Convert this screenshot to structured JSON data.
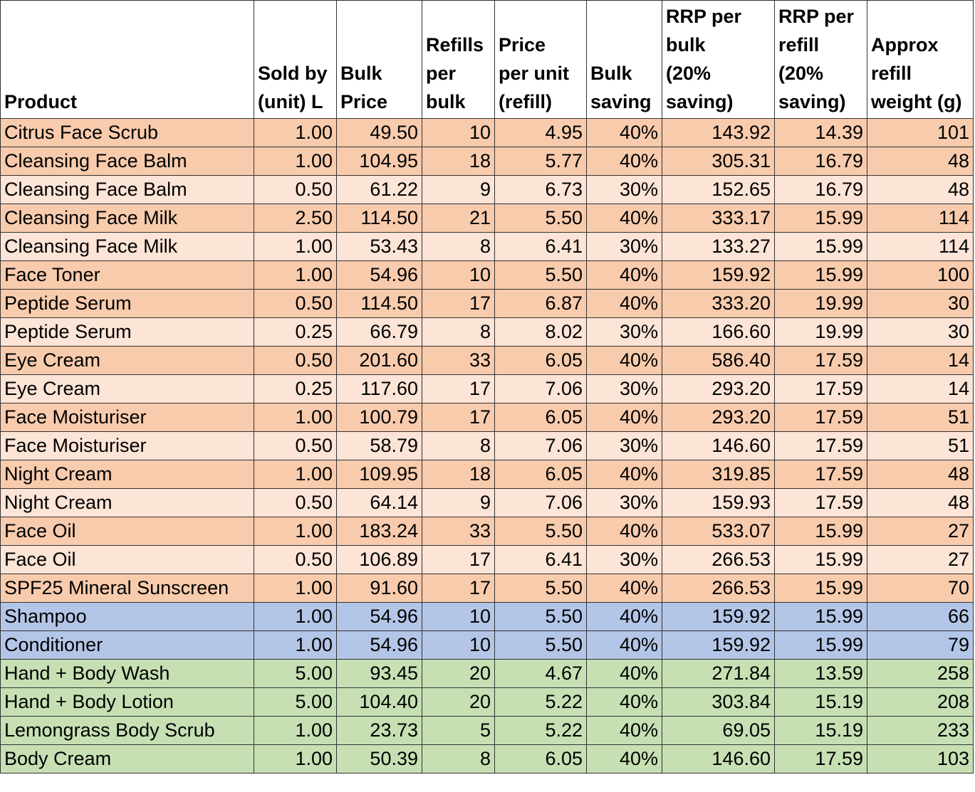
{
  "table": {
    "header": [
      [
        "Product"
      ],
      [
        "Sold by",
        "(unit) L"
      ],
      [
        "Bulk",
        "Price"
      ],
      [
        "Refills",
        "per",
        "bulk"
      ],
      [
        "Price",
        "per unit",
        "(refill)"
      ],
      [
        "Bulk",
        "saving"
      ],
      [
        "RRP per",
        "bulk",
        "(20%",
        "saving)"
      ],
      [
        "RRP per",
        "refill",
        "(20%",
        "saving)"
      ],
      [
        "Approx",
        "refill",
        "weight (g)"
      ]
    ],
    "rows": [
      [
        "Citrus Face Scrub",
        "1.00",
        "49.50",
        "10",
        "4.95",
        "40%",
        "143.92",
        "14.39",
        "101"
      ],
      [
        "Cleansing Face Balm",
        "1.00",
        "104.95",
        "18",
        "5.77",
        "40%",
        "305.31",
        "16.79",
        "48"
      ],
      [
        "Cleansing Face Balm",
        "0.50",
        "61.22",
        "9",
        "6.73",
        "30%",
        "152.65",
        "16.79",
        "48"
      ],
      [
        "Cleansing Face Milk",
        "2.50",
        "114.50",
        "21",
        "5.50",
        "40%",
        "333.17",
        "15.99",
        "114"
      ],
      [
        "Cleansing Face Milk",
        "1.00",
        "53.43",
        "8",
        "6.41",
        "30%",
        "133.27",
        "15.99",
        "114"
      ],
      [
        "Face Toner",
        "1.00",
        "54.96",
        "10",
        "5.50",
        "40%",
        "159.92",
        "15.99",
        "100"
      ],
      [
        "Peptide Serum",
        "0.50",
        "114.50",
        "17",
        "6.87",
        "40%",
        "333.20",
        "19.99",
        "30"
      ],
      [
        "Peptide Serum",
        "0.25",
        "66.79",
        "8",
        "8.02",
        "30%",
        "166.60",
        "19.99",
        "30"
      ],
      [
        "Eye Cream",
        "0.50",
        "201.60",
        "33",
        "6.05",
        "40%",
        "586.40",
        "17.59",
        "14"
      ],
      [
        "Eye Cream",
        "0.25",
        "117.60",
        "17",
        "7.06",
        "30%",
        "293.20",
        "17.59",
        "14"
      ],
      [
        "Face Moisturiser",
        "1.00",
        "100.79",
        "17",
        "6.05",
        "40%",
        "293.20",
        "17.59",
        "51"
      ],
      [
        "Face Moisturiser",
        "0.50",
        "58.79",
        "8",
        "7.06",
        "30%",
        "146.60",
        "17.59",
        "51"
      ],
      [
        "Night Cream",
        "1.00",
        "109.95",
        "18",
        "6.05",
        "40%",
        "319.85",
        "17.59",
        "48"
      ],
      [
        "Night Cream",
        "0.50",
        "64.14",
        "9",
        "7.06",
        "30%",
        "159.93",
        "17.59",
        "48"
      ],
      [
        "Face Oil",
        "1.00",
        "183.24",
        "33",
        "5.50",
        "40%",
        "533.07",
        "15.99",
        "27"
      ],
      [
        "Face Oil",
        "0.50",
        "106.89",
        "17",
        "6.41",
        "30%",
        "266.53",
        "15.99",
        "27"
      ],
      [
        "SPF25 Mineral Sunscreen",
        "1.00",
        "91.60",
        "17",
        "5.50",
        "40%",
        "266.53",
        "15.99",
        "70"
      ],
      [
        "Shampoo",
        "1.00",
        "54.96",
        "10",
        "5.50",
        "40%",
        "159.92",
        "15.99",
        "66"
      ],
      [
        "Conditioner",
        "1.00",
        "54.96",
        "10",
        "5.50",
        "40%",
        "159.92",
        "15.99",
        "79"
      ],
      [
        "Hand + Body Wash",
        "5.00",
        "93.45",
        "20",
        "4.67",
        "40%",
        "271.84",
        "13.59",
        "258"
      ],
      [
        "Hand + Body Lotion",
        "5.00",
        "104.40",
        "20",
        "5.22",
        "40%",
        "303.84",
        "15.19",
        "208"
      ],
      [
        "Lemongrass Body Scrub",
        "1.00",
        "23.73",
        "5",
        "5.22",
        "40%",
        "69.05",
        "15.19",
        "233"
      ],
      [
        "Body Cream",
        "1.00",
        "50.39",
        "8",
        "6.05",
        "40%",
        "146.60",
        "17.59",
        "103"
      ]
    ]
  }
}
